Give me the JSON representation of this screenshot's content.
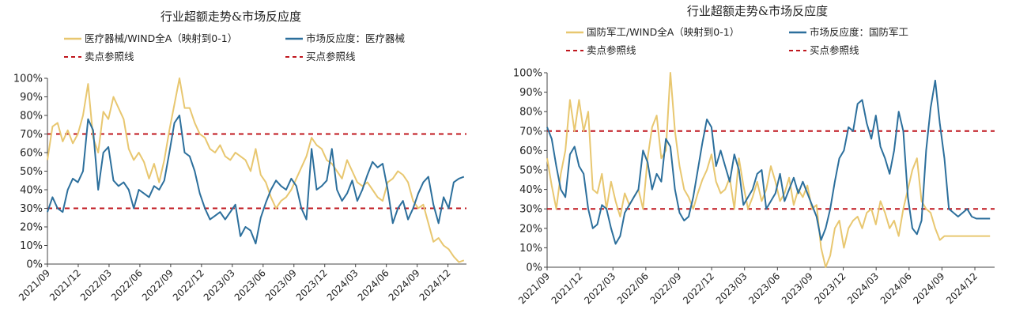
{
  "chart_data": [
    {
      "type": "line",
      "title": "行业超额走势&市场反应度",
      "legend": {
        "series1": "医疗器械/WIND全A（映射到0-1）",
        "series2": "市场反应度：医疗器械",
        "sell_line": "卖点参照线",
        "buy_line": "买点参照线"
      },
      "yticks": [
        "0%",
        "10%",
        "20%",
        "30%",
        "40%",
        "50%",
        "60%",
        "70%",
        "80%",
        "90%",
        "100%"
      ],
      "xticks": [
        "2021/09",
        "2021/12",
        "2022/03",
        "2022/06",
        "2022/09",
        "2022/12",
        "2023/03",
        "2023/06",
        "2023/09",
        "2023/12",
        "2024/03",
        "2024/06",
        "2024/09",
        "2024/12"
      ],
      "ylim": [
        0,
        1
      ],
      "x_range": [
        0,
        16.5
      ],
      "reference_lines": {
        "sell": 0.7,
        "buy": 0.3
      },
      "colors": {
        "series1": "#e8c770",
        "series2": "#2c6f9c",
        "reference": "#c0171e"
      },
      "series": [
        {
          "name": "医疗器械/WIND全A（映射到0-1）",
          "x": [
            0,
            0.2,
            0.4,
            0.6,
            0.8,
            1.0,
            1.2,
            1.4,
            1.6,
            1.8,
            2.0,
            2.2,
            2.4,
            2.6,
            2.8,
            3.0,
            3.2,
            3.4,
            3.6,
            3.8,
            4.0,
            4.2,
            4.4,
            4.6,
            4.8,
            5.0,
            5.2,
            5.4,
            5.6,
            5.8,
            6.0,
            6.2,
            6.4,
            6.6,
            6.8,
            7.0,
            7.2,
            7.4,
            7.6,
            7.8,
            8.0,
            8.2,
            8.4,
            8.6,
            8.8,
            9.0,
            9.2,
            9.4,
            9.6,
            9.8,
            10.0,
            10.2,
            10.4,
            10.6,
            10.8,
            11.0,
            11.2,
            11.4,
            11.6,
            11.8,
            12.0,
            12.2,
            12.4,
            12.6,
            12.8,
            13.0,
            13.2,
            13.4,
            13.6,
            13.8,
            14.0,
            14.2,
            14.4,
            14.6,
            14.8,
            15.0,
            15.2,
            15.4,
            15.6,
            15.8,
            16.0,
            16.2,
            16.4
          ],
          "values": [
            0.56,
            0.74,
            0.76,
            0.66,
            0.72,
            0.65,
            0.7,
            0.8,
            0.97,
            0.68,
            0.6,
            0.82,
            0.78,
            0.9,
            0.84,
            0.78,
            0.62,
            0.56,
            0.6,
            0.55,
            0.46,
            0.54,
            0.44,
            0.56,
            0.72,
            0.86,
            1.0,
            0.84,
            0.84,
            0.76,
            0.7,
            0.68,
            0.62,
            0.6,
            0.64,
            0.58,
            0.56,
            0.6,
            0.58,
            0.56,
            0.5,
            0.62,
            0.48,
            0.44,
            0.36,
            0.3,
            0.34,
            0.36,
            0.4,
            0.46,
            0.52,
            0.58,
            0.68,
            0.64,
            0.62,
            0.56,
            0.54,
            0.5,
            0.46,
            0.56,
            0.5,
            0.44,
            0.42,
            0.44,
            0.4,
            0.36,
            0.34,
            0.44,
            0.46,
            0.5,
            0.48,
            0.44,
            0.34,
            0.3,
            0.32,
            0.22,
            0.12,
            0.14,
            0.1,
            0.08,
            0.04,
            0.01,
            0.02
          ]
        },
        {
          "name": "市场反应度：医疗器械",
          "x": [
            0,
            0.2,
            0.4,
            0.6,
            0.8,
            1.0,
            1.2,
            1.4,
            1.6,
            1.8,
            2.0,
            2.2,
            2.4,
            2.6,
            2.8,
            3.0,
            3.2,
            3.4,
            3.6,
            3.8,
            4.0,
            4.2,
            4.4,
            4.6,
            4.8,
            5.0,
            5.2,
            5.4,
            5.6,
            5.8,
            6.0,
            6.2,
            6.4,
            6.6,
            6.8,
            7.0,
            7.2,
            7.4,
            7.6,
            7.8,
            8.0,
            8.2,
            8.4,
            8.6,
            8.8,
            9.0,
            9.2,
            9.4,
            9.6,
            9.8,
            10.0,
            10.2,
            10.4,
            10.6,
            10.8,
            11.0,
            11.2,
            11.4,
            11.6,
            11.8,
            12.0,
            12.2,
            12.4,
            12.6,
            12.8,
            13.0,
            13.2,
            13.4,
            13.6,
            13.8,
            14.0,
            14.2,
            14.4,
            14.6,
            14.8,
            15.0,
            15.2,
            15.4,
            15.6,
            15.8,
            16.0,
            16.2,
            16.4
          ],
          "values": [
            0.28,
            0.36,
            0.3,
            0.28,
            0.4,
            0.46,
            0.44,
            0.5,
            0.78,
            0.72,
            0.4,
            0.6,
            0.63,
            0.45,
            0.42,
            0.44,
            0.4,
            0.3,
            0.4,
            0.38,
            0.36,
            0.42,
            0.4,
            0.45,
            0.6,
            0.76,
            0.8,
            0.6,
            0.58,
            0.5,
            0.38,
            0.3,
            0.24,
            0.26,
            0.28,
            0.24,
            0.28,
            0.32,
            0.15,
            0.2,
            0.18,
            0.11,
            0.25,
            0.33,
            0.4,
            0.45,
            0.42,
            0.4,
            0.46,
            0.42,
            0.3,
            0.24,
            0.62,
            0.4,
            0.42,
            0.45,
            0.62,
            0.4,
            0.34,
            0.38,
            0.45,
            0.34,
            0.4,
            0.48,
            0.55,
            0.52,
            0.54,
            0.4,
            0.22,
            0.3,
            0.34,
            0.24,
            0.3,
            0.38,
            0.44,
            0.47,
            0.32,
            0.22,
            0.36,
            0.3,
            0.44,
            0.46,
            0.47
          ]
        }
      ]
    },
    {
      "type": "line",
      "title": "行业超额走势&市场反应度",
      "legend": {
        "series1": "国防军工/WIND全A（映射到0-1）",
        "series2": "市场反应度：国防军工",
        "sell_line": "卖点参照线",
        "buy_line": "买点参照线"
      },
      "yticks": [
        "0%",
        "10%",
        "20%",
        "30%",
        "40%",
        "50%",
        "60%",
        "70%",
        "80%",
        "90%",
        "100%"
      ],
      "xticks": [
        "2021/09",
        "2021/12",
        "2022/03",
        "2022/06",
        "2022/09",
        "2022/12",
        "2023/03",
        "2023/06",
        "2023/09",
        "2023/12",
        "2024/03",
        "2024/06",
        "2024/09",
        "2024/12"
      ],
      "ylim": [
        0,
        1
      ],
      "x_range": [
        0,
        14.7
      ],
      "reference_lines": {
        "sell": 0.7,
        "buy": 0.3
      },
      "colors": {
        "series1": "#e8c770",
        "series2": "#2c6f9c",
        "reference": "#c0171e"
      },
      "series": [
        {
          "name": "国防军工/WIND全A（映射到0-1）",
          "x": [
            0,
            0.15,
            0.3,
            0.45,
            0.6,
            0.75,
            0.9,
            1.05,
            1.2,
            1.35,
            1.5,
            1.65,
            1.8,
            1.95,
            2.1,
            2.25,
            2.4,
            2.55,
            2.7,
            2.85,
            3.0,
            3.15,
            3.3,
            3.45,
            3.6,
            3.75,
            3.9,
            4.05,
            4.2,
            4.35,
            4.5,
            4.65,
            4.8,
            4.95,
            5.1,
            5.25,
            5.4,
            5.55,
            5.7,
            5.85,
            6.0,
            6.15,
            6.3,
            6.45,
            6.6,
            6.75,
            6.9,
            7.05,
            7.2,
            7.35,
            7.5,
            7.65,
            7.8,
            7.95,
            8.1,
            8.25,
            8.4,
            8.55,
            8.7,
            8.85,
            9.0,
            9.15,
            9.3,
            9.45,
            9.6,
            9.75,
            9.9,
            10.05,
            10.2,
            10.35,
            10.5,
            10.65,
            10.8,
            10.95,
            11.1,
            11.25,
            11.4,
            11.55,
            11.7,
            11.85,
            12.0,
            12.15,
            12.3,
            12.45,
            12.6,
            12.75,
            12.9,
            13.05,
            13.2,
            13.35,
            13.5,
            13.65,
            13.8,
            13.95,
            14.1,
            14.25,
            14.4,
            14.55
          ],
          "values": [
            0.56,
            0.42,
            0.3,
            0.48,
            0.6,
            0.86,
            0.7,
            0.86,
            0.7,
            0.8,
            0.4,
            0.38,
            0.48,
            0.3,
            0.44,
            0.34,
            0.26,
            0.38,
            0.32,
            0.36,
            0.4,
            0.3,
            0.56,
            0.72,
            0.78,
            0.56,
            0.6,
            1.0,
            0.7,
            0.52,
            0.4,
            0.36,
            0.3,
            0.38,
            0.45,
            0.5,
            0.58,
            0.44,
            0.38,
            0.4,
            0.46,
            0.3,
            0.56,
            0.42,
            0.3,
            0.36,
            0.44,
            0.34,
            0.4,
            0.52,
            0.44,
            0.34,
            0.38,
            0.46,
            0.32,
            0.4,
            0.36,
            0.42,
            0.3,
            0.32,
            0.1,
            0.0,
            0.06,
            0.2,
            0.24,
            0.1,
            0.2,
            0.24,
            0.26,
            0.2,
            0.28,
            0.3,
            0.22,
            0.34,
            0.28,
            0.2,
            0.24,
            0.16,
            0.3,
            0.4,
            0.5,
            0.56,
            0.34,
            0.3,
            0.28,
            0.2,
            0.14,
            0.16,
            0.16,
            0.16,
            0.16,
            0.16,
            0.16,
            0.16,
            0.16,
            0.16,
            0.16,
            0.16
          ]
        },
        {
          "name": "市场反应度：国防军工",
          "x": [
            0,
            0.15,
            0.3,
            0.45,
            0.6,
            0.75,
            0.9,
            1.05,
            1.2,
            1.35,
            1.5,
            1.65,
            1.8,
            1.95,
            2.1,
            2.25,
            2.4,
            2.55,
            2.7,
            2.85,
            3.0,
            3.15,
            3.3,
            3.45,
            3.6,
            3.75,
            3.9,
            4.05,
            4.2,
            4.35,
            4.5,
            4.65,
            4.8,
            4.95,
            5.1,
            5.25,
            5.4,
            5.55,
            5.7,
            5.85,
            6.0,
            6.15,
            6.3,
            6.45,
            6.6,
            6.75,
            6.9,
            7.05,
            7.2,
            7.35,
            7.5,
            7.65,
            7.8,
            7.95,
            8.1,
            8.25,
            8.4,
            8.55,
            8.7,
            8.85,
            9.0,
            9.15,
            9.3,
            9.45,
            9.6,
            9.75,
            9.9,
            10.05,
            10.2,
            10.35,
            10.5,
            10.65,
            10.8,
            10.95,
            11.1,
            11.25,
            11.4,
            11.55,
            11.7,
            11.85,
            12.0,
            12.15,
            12.3,
            12.45,
            12.6,
            12.75,
            12.9,
            13.05,
            13.2,
            13.35,
            13.5,
            13.65,
            13.8,
            13.95,
            14.1,
            14.25,
            14.4,
            14.55
          ],
          "values": [
            0.72,
            0.66,
            0.52,
            0.4,
            0.36,
            0.58,
            0.62,
            0.52,
            0.48,
            0.3,
            0.2,
            0.22,
            0.32,
            0.3,
            0.2,
            0.12,
            0.16,
            0.28,
            0.32,
            0.36,
            0.4,
            0.6,
            0.54,
            0.4,
            0.48,
            0.44,
            0.66,
            0.62,
            0.4,
            0.28,
            0.24,
            0.26,
            0.36,
            0.5,
            0.64,
            0.76,
            0.72,
            0.52,
            0.6,
            0.52,
            0.44,
            0.58,
            0.5,
            0.32,
            0.36,
            0.4,
            0.48,
            0.5,
            0.3,
            0.34,
            0.38,
            0.48,
            0.34,
            0.4,
            0.46,
            0.38,
            0.44,
            0.38,
            0.32,
            0.26,
            0.14,
            0.2,
            0.3,
            0.44,
            0.56,
            0.6,
            0.72,
            0.7,
            0.84,
            0.86,
            0.74,
            0.66,
            0.78,
            0.62,
            0.56,
            0.48,
            0.6,
            0.8,
            0.7,
            0.36,
            0.2,
            0.17,
            0.24,
            0.6,
            0.82,
            0.96,
            0.74,
            0.56,
            0.3,
            0.28,
            0.26,
            0.28,
            0.3,
            0.26,
            0.25,
            0.25,
            0.25,
            0.25
          ]
        }
      ]
    }
  ]
}
